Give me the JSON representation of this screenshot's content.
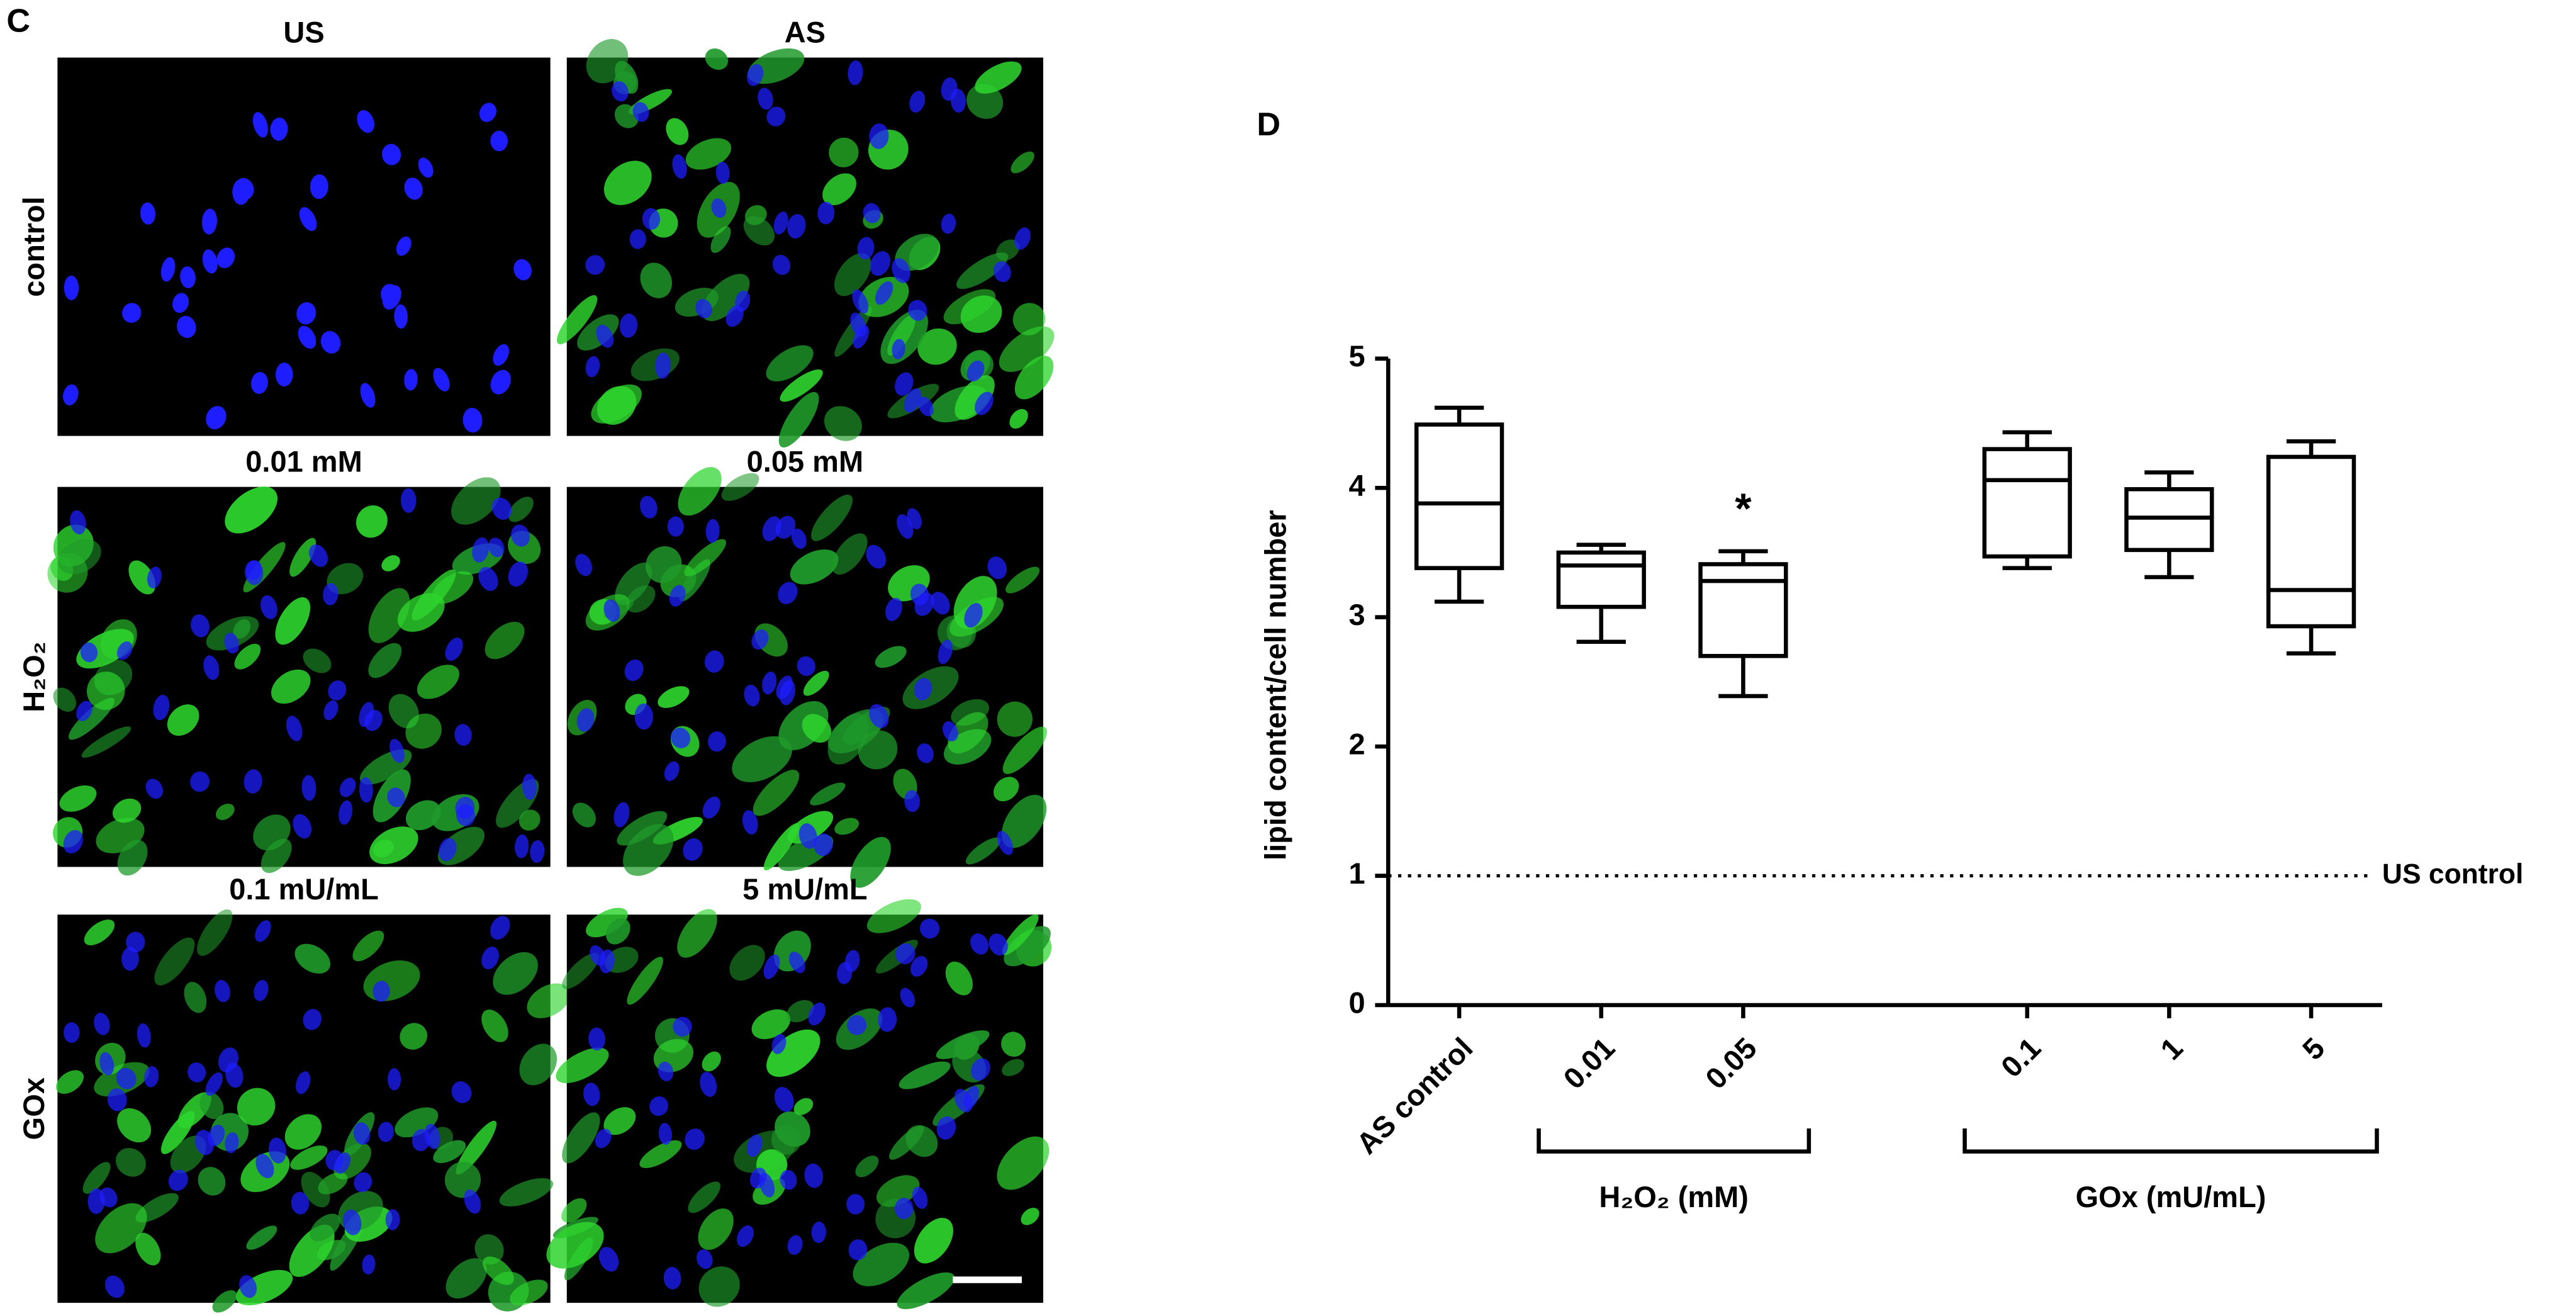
{
  "panel_c": {
    "label": "C",
    "columns": [
      [
        "US",
        "AS"
      ],
      [
        "0.01 mM",
        "0.05 mM"
      ],
      [
        "0.1 mU/mL",
        "5 mU/mL"
      ]
    ],
    "rows": [
      "control",
      "H₂O₂",
      "GOx"
    ]
  },
  "chart_data": {
    "type": "box",
    "panel_label": "D",
    "y_label": "lipid content/cell number",
    "categories": [
      "AS control",
      "0.01",
      "0.05",
      null,
      "0.1",
      "1",
      "5"
    ],
    "series": [
      {
        "color": "#000000",
        "max": [
          4.62,
          3.56,
          3.51,
          null,
          4.43,
          4.12,
          4.36
        ],
        "q3": [
          4.49,
          3.5,
          3.41,
          null,
          4.3,
          3.99,
          4.24
        ],
        "median": [
          3.88,
          3.4,
          3.28,
          null,
          4.06,
          3.77,
          3.21
        ],
        "q1": [
          3.38,
          3.08,
          2.7,
          null,
          3.47,
          3.52,
          2.93
        ],
        "min": [
          3.12,
          2.81,
          2.39,
          null,
          3.38,
          3.31,
          2.72
        ]
      }
    ],
    "groups": [
      "H₂O₂ (mM)",
      "GOx (mU/mL)"
    ],
    "reference_line": {
      "value": 1,
      "label": "US control"
    },
    "annotations": [
      {
        "text": "*",
        "x": "0.05"
      }
    ],
    "ylim": [
      0,
      5
    ],
    "yticks": [
      0,
      1,
      2,
      3,
      4,
      5
    ],
    "grid": false
  }
}
